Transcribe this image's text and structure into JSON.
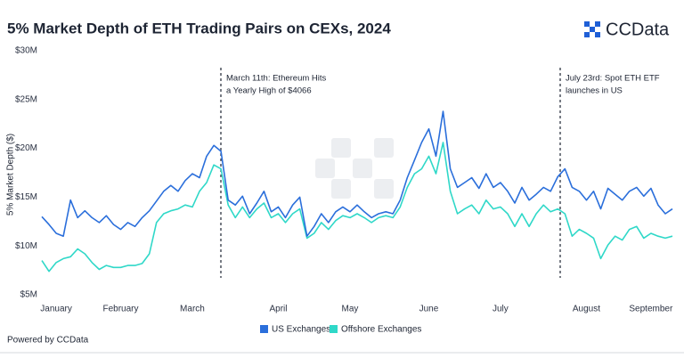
{
  "chart_data": {
    "type": "line",
    "title": "5% Market Depth of ETH Trading Pairs on CEXs, 2024",
    "brand": "CCData",
    "ylabel": "5% Market Depth ($)",
    "footer": "Powered by CCData",
    "ylim": [
      5,
      30
    ],
    "yticks": [
      {
        "value": 5,
        "label": "$5M"
      },
      {
        "value": 10,
        "label": "$10M"
      },
      {
        "value": 15,
        "label": "$15M"
      },
      {
        "value": 20,
        "label": "$20M"
      },
      {
        "value": 25,
        "label": "$25M"
      },
      {
        "value": 30,
        "label": "$30M"
      }
    ],
    "annotations": [
      [
        "March 11th: Ethereum Hits",
        "a Yearly High of $4066"
      ],
      [
        "July 23rd: Spot ETH ETF",
        "launches in US"
      ]
    ],
    "categories": [
      null,
      null,
      "January",
      null,
      null,
      null,
      null,
      null,
      null,
      null,
      null,
      "February",
      null,
      null,
      null,
      null,
      null,
      null,
      null,
      null,
      null,
      "March",
      null,
      null,
      null,
      null,
      null,
      null,
      null,
      null,
      null,
      null,
      null,
      "April",
      null,
      null,
      null,
      null,
      null,
      null,
      null,
      null,
      null,
      "May",
      null,
      null,
      null,
      null,
      null,
      null,
      null,
      null,
      null,
      null,
      "June",
      null,
      null,
      null,
      null,
      null,
      null,
      null,
      null,
      null,
      "July",
      null,
      null,
      null,
      null,
      null,
      null,
      null,
      null,
      null,
      null,
      null,
      "August",
      null,
      null,
      null,
      null,
      null,
      null,
      null,
      null,
      "September",
      null,
      null,
      null
    ],
    "series": [
      {
        "name": "US Exchanges",
        "color": "#2b6fdb",
        "values": [
          13.0,
          12.2,
          11.3,
          11.0,
          14.7,
          12.9,
          13.6,
          12.9,
          12.4,
          13.1,
          12.2,
          11.7,
          12.4,
          12.0,
          12.9,
          13.6,
          14.6,
          15.6,
          16.2,
          15.6,
          16.7,
          17.4,
          17.0,
          19.2,
          20.3,
          19.7,
          14.7,
          14.2,
          15.1,
          13.3,
          14.4,
          15.6,
          13.5,
          14.0,
          12.9,
          14.2,
          15.0,
          11.0,
          12.0,
          13.3,
          12.4,
          13.5,
          14.0,
          13.5,
          14.2,
          13.5,
          12.9,
          13.3,
          13.5,
          13.3,
          14.7,
          17.0,
          18.8,
          20.6,
          22.0,
          19.2,
          23.8,
          17.9,
          16.0,
          16.5,
          17.0,
          15.9,
          17.4,
          16.0,
          16.5,
          15.6,
          14.4,
          16.0,
          14.7,
          15.3,
          16.0,
          15.6,
          17.1,
          17.9,
          16.0,
          15.6,
          14.7,
          15.6,
          13.8,
          15.9,
          15.3,
          14.7,
          15.6,
          16.0,
          15.1,
          15.9,
          14.2,
          13.3,
          13.8
        ]
      },
      {
        "name": "Offshore Exchanges",
        "color": "#2fd8c8",
        "values": [
          8.5,
          7.4,
          8.3,
          8.7,
          8.9,
          9.7,
          9.2,
          8.3,
          7.6,
          8.0,
          7.8,
          7.8,
          8.0,
          8.0,
          8.2,
          9.2,
          12.4,
          13.3,
          13.6,
          13.8,
          14.2,
          14.0,
          15.6,
          16.5,
          18.3,
          17.9,
          14.2,
          12.9,
          14.0,
          12.9,
          13.8,
          14.4,
          12.9,
          13.3,
          12.4,
          13.3,
          13.8,
          10.8,
          11.3,
          12.4,
          11.7,
          12.6,
          13.1,
          12.9,
          13.3,
          12.9,
          12.4,
          12.9,
          13.1,
          12.9,
          14.0,
          16.0,
          17.4,
          17.9,
          19.2,
          17.4,
          20.6,
          15.6,
          13.3,
          13.8,
          14.2,
          13.3,
          14.7,
          13.8,
          14.0,
          13.3,
          12.0,
          13.3,
          12.0,
          13.3,
          14.2,
          13.5,
          13.8,
          13.3,
          11.0,
          11.7,
          11.3,
          10.8,
          8.7,
          10.1,
          11.0,
          10.6,
          11.7,
          12.0,
          10.8,
          11.3,
          11.0,
          10.8,
          11.0
        ]
      }
    ]
  }
}
